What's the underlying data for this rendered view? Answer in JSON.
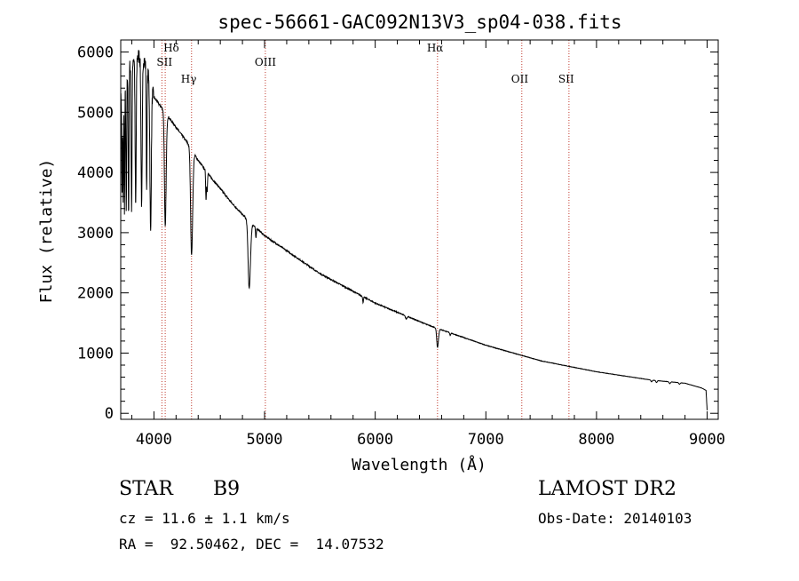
{
  "chart_data": {
    "type": "line",
    "title": "spec-56661-GAC092N13V3_sp04-038.fits",
    "xlabel": "Wavelength (Å)",
    "ylabel": "Flux (relative)",
    "xlim": [
      3700,
      9100
    ],
    "ylim": [
      -100,
      6200
    ],
    "xticks": [
      {
        "value": 4000,
        "label": "4000"
      },
      {
        "value": 5000,
        "label": "5000"
      },
      {
        "value": 6000,
        "label": "6000"
      },
      {
        "value": 7000,
        "label": "7000"
      },
      {
        "value": 8000,
        "label": "8000"
      },
      {
        "value": 9000,
        "label": "9000"
      }
    ],
    "yticks": [
      {
        "value": 0,
        "label": "0"
      },
      {
        "value": 1000,
        "label": "1000"
      },
      {
        "value": 2000,
        "label": "2000"
      },
      {
        "value": 3000,
        "label": "3000"
      },
      {
        "value": 4000,
        "label": "4000"
      },
      {
        "value": 5000,
        "label": "5000"
      },
      {
        "value": 6000,
        "label": "6000"
      }
    ],
    "spectral_lines": [
      {
        "name": "Hδ",
        "wavelength": 4102
      },
      {
        "name": "SII",
        "wavelength": 4072
      },
      {
        "name": "Hγ",
        "wavelength": 4340
      },
      {
        "name": "OIII",
        "wavelength": 5007
      },
      {
        "name": "Hα",
        "wavelength": 6563
      },
      {
        "name": "OII",
        "wavelength": 7325
      },
      {
        "name": "SII",
        "wavelength": 7751
      }
    ],
    "continuum": [
      [
        3700,
        5200
      ],
      [
        3800,
        5900
      ],
      [
        3900,
        5950
      ],
      [
        4000,
        5250
      ],
      [
        4100,
        5000
      ],
      [
        4200,
        4750
      ],
      [
        4300,
        4500
      ],
      [
        4400,
        4200
      ],
      [
        4500,
        3950
      ],
      [
        4600,
        3730
      ],
      [
        4700,
        3500
      ],
      [
        4800,
        3300
      ],
      [
        5000,
        2950
      ],
      [
        5200,
        2700
      ],
      [
        5500,
        2320
      ],
      [
        6000,
        1830
      ],
      [
        6500,
        1450
      ],
      [
        7000,
        1130
      ],
      [
        7500,
        870
      ],
      [
        8000,
        690
      ],
      [
        8500,
        550
      ],
      [
        8800,
        500
      ],
      [
        8950,
        420
      ],
      [
        8990,
        380
      ],
      [
        9000,
        50
      ]
    ],
    "absorption_features": [
      [
        3712,
        0.3,
        4,
        4
      ],
      [
        3722,
        0.35,
        4,
        4
      ],
      [
        3734,
        0.38,
        4,
        4
      ],
      [
        3750,
        0.4,
        5,
        5
      ],
      [
        3771,
        0.42,
        5,
        5
      ],
      [
        3798,
        0.42,
        6,
        6
      ],
      [
        3835,
        0.42,
        7,
        7
      ],
      [
        3889,
        0.42,
        8,
        8
      ],
      [
        3934,
        0.35,
        5,
        5
      ],
      [
        3970,
        0.45,
        9,
        9
      ],
      [
        4102,
        0.38,
        10,
        12
      ],
      [
        4340,
        0.4,
        12,
        14
      ],
      [
        4471,
        0.12,
        5,
        5
      ],
      [
        4481,
        0.08,
        4,
        4
      ],
      [
        4861,
        0.35,
        14,
        16
      ],
      [
        4922,
        0.06,
        5,
        5
      ],
      [
        5890,
        0.05,
        5,
        5
      ],
      [
        6280,
        0.03,
        10,
        10
      ],
      [
        6563,
        0.22,
        10,
        12
      ],
      [
        6678,
        0.03,
        6,
        6
      ],
      [
        8498,
        0.05,
        8,
        8
      ],
      [
        8542,
        0.06,
        8,
        8
      ],
      [
        8662,
        0.06,
        8,
        8
      ],
      [
        8750,
        0.05,
        8,
        8
      ]
    ]
  },
  "info": {
    "object_class": "STAR",
    "subclass": "B9",
    "survey": "LAMOST DR2",
    "cz": "cz = 11.6 ± 1.1 km/s",
    "obs_date": "Obs-Date: 20140103",
    "coords": "RA =  92.50462, DEC =  14.07532"
  },
  "colors": {
    "axis": "#000000",
    "spectrum": "#000000",
    "line_markers": "#c0392b"
  }
}
